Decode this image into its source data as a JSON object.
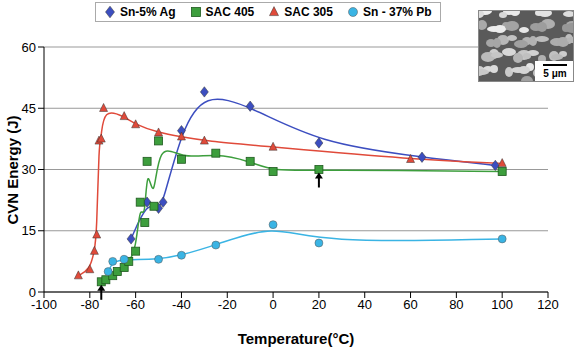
{
  "chart_data": {
    "type": "scatter",
    "xlabel": "Temperature(°C)",
    "ylabel": "CVN Energy (J)",
    "xlim": [
      -100,
      120
    ],
    "xticks": [
      -100,
      -80,
      -60,
      -40,
      -20,
      0,
      20,
      40,
      60,
      80,
      100,
      120
    ],
    "ylim": [
      0,
      60
    ],
    "yticks": [
      0,
      15,
      30,
      45,
      60
    ],
    "grid": "y",
    "legend": "top",
    "line_style": "solid",
    "annotations": [
      "5 μm"
    ],
    "arrows": [
      {
        "x": -75,
        "y": 2.5
      },
      {
        "x": 20,
        "y": 30
      }
    ],
    "series": [
      {
        "name": "Sn-5% Ag",
        "color": "#3c4ec0",
        "marker": "diamond",
        "x": [
          -62,
          -55,
          -50,
          -48,
          -40,
          -30,
          -10,
          20,
          65,
          97
        ],
        "values": [
          13,
          22,
          20.5,
          22,
          39.5,
          49,
          45.5,
          36.5,
          33,
          31
        ]
      },
      {
        "name": "SAC 405",
        "color": "#3d9e3d",
        "marker": "square",
        "x": [
          -75,
          -73,
          -70,
          -68,
          -65,
          -63,
          -60,
          -58,
          -56,
          -55,
          -52,
          -50,
          -40,
          -25,
          -10,
          0,
          20,
          100
        ],
        "values": [
          2.5,
          3,
          4,
          5,
          6,
          7.5,
          10,
          22,
          17,
          32,
          21,
          37,
          32.5,
          34,
          32,
          29.5,
          30,
          29.5
        ]
      },
      {
        "name": "SAC 305",
        "color": "#e04a3a",
        "marker": "triangle",
        "x": [
          -85,
          -80,
          -78,
          -77,
          -76,
          -75,
          -74,
          -65,
          -60,
          -50,
          -40,
          -30,
          0,
          60,
          100
        ],
        "values": [
          4,
          5.5,
          10,
          14,
          37,
          37.5,
          45,
          43,
          41,
          39,
          38,
          37,
          35.5,
          32.5,
          31.5
        ]
      },
      {
        "name": "Sn - 37% Pb",
        "color": "#3ab4e4",
        "marker": "circle",
        "x": [
          -72,
          -70,
          -65,
          -50,
          -40,
          -25,
          0,
          20,
          100
        ],
        "values": [
          5,
          7.5,
          8,
          8,
          9,
          11.5,
          16.5,
          12,
          13
        ]
      }
    ]
  }
}
